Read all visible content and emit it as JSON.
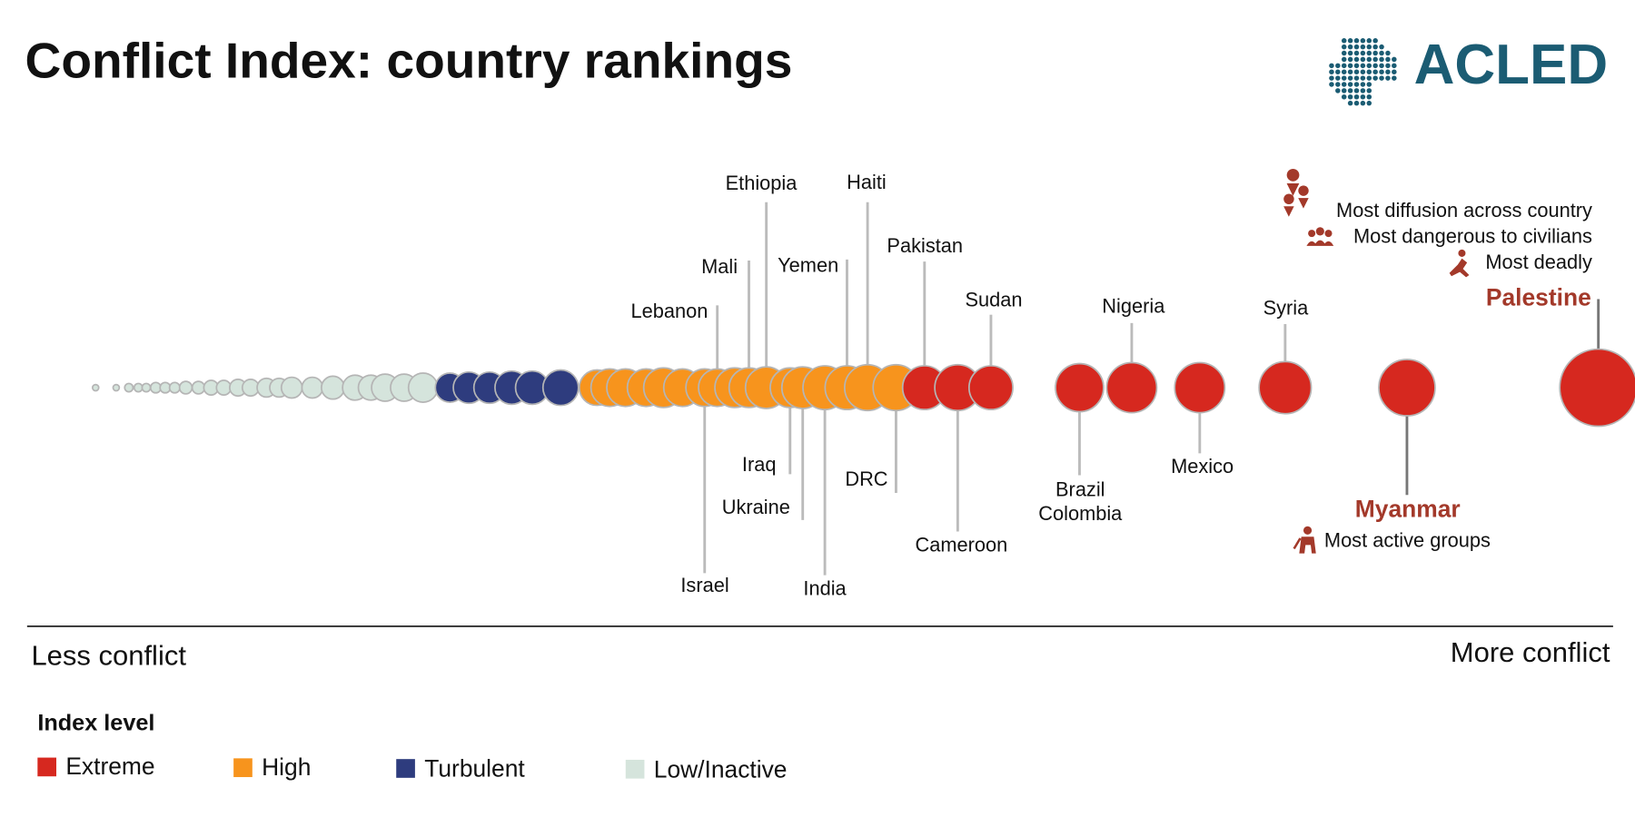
{
  "chart_data": {
    "type": "bubble",
    "title": "Conflict Index: country rankings",
    "logo": "ACLED",
    "axis_labels": [
      "Less conflict",
      "More conflict"
    ],
    "legend_title": "Index level",
    "xlim": [
      0,
      100
    ],
    "annotations": [
      "Most diffusion across country",
      "Most dangerous to civilians",
      "Most deadly",
      "Most active groups"
    ],
    "series": [
      {
        "name": "Extreme",
        "color": "#d6281f",
        "categories": [
          "Pakistan",
          "Cameroon",
          "Sudan",
          "Brazil",
          "Colombia",
          "Nigeria",
          "Mexico",
          "Syria",
          "Myanmar",
          "Palestine"
        ],
        "x": [
          56.6,
          58.7,
          60.8,
          66.4,
          66.4,
          69.7,
          74.0,
          79.4,
          87.1,
          99.2
        ],
        "sizes": [
          21,
          22,
          21,
          23,
          23,
          24,
          24,
          25,
          27,
          37
        ]
      },
      {
        "name": "High",
        "color": "#f7941d",
        "categories": [
          null,
          null,
          null,
          null,
          null,
          null,
          "Israel",
          "Lebanon",
          null,
          "Mali",
          "Ethiopia",
          "Iraq",
          "Ukraine",
          "India",
          "Yemen",
          "Haiti",
          "DRC"
        ],
        "x": [
          35.9,
          36.7,
          37.7,
          39.0,
          40.1,
          41.3,
          42.7,
          43.5,
          44.6,
          45.5,
          46.6,
          48.1,
          48.9,
          50.3,
          51.7,
          53.0,
          54.8
        ],
        "sizes": [
          17,
          18,
          18,
          18,
          19,
          18,
          18,
          18,
          19,
          19,
          20,
          19,
          20,
          21,
          21,
          22,
          22
        ]
      },
      {
        "name": "Turbulent",
        "color": "#2e3c7e",
        "categories": [
          null,
          null,
          null,
          null,
          null,
          null
        ],
        "x": [
          26.6,
          27.8,
          29.1,
          30.5,
          31.8,
          33.6
        ],
        "sizes": [
          14,
          15,
          15,
          16,
          16,
          17
        ]
      },
      {
        "name": "Low/Inactive",
        "color": "#d5e4dc",
        "categories": [
          null,
          null,
          null,
          null,
          null,
          null,
          null,
          null,
          null,
          null,
          null,
          null,
          null,
          null,
          null,
          null,
          null,
          null,
          null,
          null,
          null,
          null,
          null,
          null
        ],
        "x": [
          4.2,
          5.5,
          6.3,
          6.9,
          7.4,
          8.0,
          8.6,
          9.2,
          9.9,
          10.7,
          11.5,
          12.3,
          13.2,
          14.0,
          15.0,
          15.8,
          16.6,
          17.9,
          19.2,
          20.6,
          21.6,
          22.5,
          23.7,
          24.9
        ],
        "sizes": [
          3,
          3,
          4,
          4,
          4,
          5,
          5,
          5,
          6,
          6,
          7,
          7,
          8,
          8,
          9,
          9,
          10,
          10,
          11,
          12,
          12,
          13,
          13,
          14
        ]
      }
    ]
  }
}
